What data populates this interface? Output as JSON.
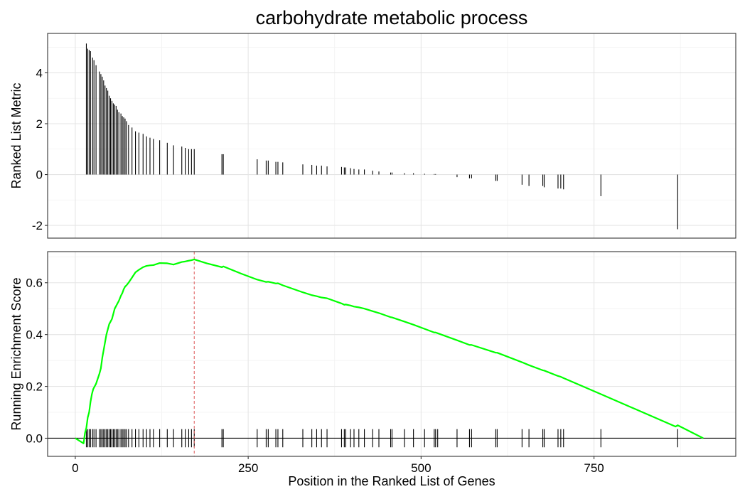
{
  "chart_data": [
    {
      "type": "bar",
      "panel": "top",
      "title": "carbohydrate metabolic process",
      "ylabel": "Ranked List Metric",
      "xlim": [
        -40,
        955
      ],
      "ylim": [
        -2.5,
        5.55
      ],
      "yticks": [
        -2,
        0,
        2,
        4
      ],
      "ytick_labels": [
        "-2",
        "0",
        "2",
        "4"
      ],
      "grid": true,
      "x": [
        16,
        18,
        20,
        22,
        25,
        27,
        30,
        35,
        37,
        39,
        41,
        43,
        45,
        47,
        49,
        51,
        53,
        55,
        57,
        59,
        61,
        63,
        66,
        68,
        70,
        72,
        74,
        77,
        82,
        87,
        92,
        98,
        103,
        108,
        113,
        122,
        133,
        142,
        154,
        159,
        164,
        168,
        172,
        212,
        214,
        263,
        276,
        279,
        290,
        293,
        300,
        329,
        342,
        349,
        356,
        364,
        385,
        389,
        391,
        398,
        403,
        410,
        418,
        430,
        439,
        456,
        458,
        476,
        489,
        505,
        519,
        521,
        524,
        552,
        570,
        573,
        608,
        610,
        646,
        656,
        676,
        678,
        698,
        702,
        706,
        760,
        871
      ],
      "values": [
        5.15,
        4.95,
        4.9,
        4.85,
        4.6,
        4.5,
        4.3,
        4.05,
        3.95,
        3.85,
        3.7,
        3.5,
        3.4,
        3.3,
        3.1,
        3.0,
        2.9,
        2.8,
        2.75,
        2.7,
        2.55,
        2.45,
        2.4,
        2.3,
        2.25,
        2.2,
        2.1,
        1.95,
        1.85,
        1.7,
        1.65,
        1.6,
        1.5,
        1.45,
        1.4,
        1.35,
        1.25,
        1.15,
        1.1,
        1.05,
        1.0,
        1.0,
        1.0,
        0.8,
        0.8,
        0.6,
        0.55,
        0.55,
        0.5,
        0.5,
        0.48,
        0.4,
        0.38,
        0.35,
        0.35,
        0.32,
        0.3,
        0.28,
        0.28,
        0.25,
        0.22,
        0.2,
        0.2,
        0.15,
        0.12,
        0.08,
        0.08,
        0.05,
        0.05,
        0.03,
        0.02,
        0.02,
        0.0,
        -0.1,
        -0.15,
        -0.15,
        -0.25,
        -0.25,
        -0.4,
        -0.45,
        -0.45,
        -0.5,
        -0.55,
        -0.55,
        -0.58,
        -0.85,
        -2.15
      ]
    },
    {
      "type": "line",
      "panel": "bottom",
      "ylabel": "Running Enrichment Score",
      "xlabel": "Position in the Ranked List of Genes",
      "xlim": [
        -40,
        955
      ],
      "ylim": [
        -0.07,
        0.72
      ],
      "xticks": [
        0,
        250,
        500,
        750
      ],
      "xtick_labels": [
        "0",
        "250",
        "500",
        "750"
      ],
      "yticks": [
        0.0,
        0.2,
        0.4,
        0.6
      ],
      "ytick_labels": [
        "0.0",
        "0.2",
        "0.4",
        "0.6"
      ],
      "grid": true,
      "line_color": "#00ff00",
      "peak_marker": {
        "x": 172,
        "color": "#e06666",
        "style": "dashed"
      },
      "series": [
        {
          "x": [
            0,
            12,
            14,
            16,
            18,
            20,
            22,
            24,
            26,
            28,
            30,
            35,
            37,
            39,
            41,
            43,
            45,
            47,
            49,
            51,
            53,
            55,
            57,
            59,
            61,
            63,
            66,
            68,
            70,
            72,
            74,
            77,
            82,
            87,
            92,
            98,
            103,
            108,
            113,
            122,
            133,
            142,
            154,
            159,
            164,
            168,
            172,
            190,
            212,
            214,
            240,
            263,
            276,
            279,
            290,
            293,
            300,
            329,
            342,
            349,
            356,
            364,
            385,
            389,
            391,
            398,
            403,
            410,
            418,
            430,
            439,
            456,
            458,
            476,
            489,
            505,
            519,
            521,
            524,
            552,
            570,
            573,
            608,
            610,
            646,
            656,
            676,
            678,
            698,
            702,
            706,
            760,
            868,
            871,
            908
          ],
          "values": [
            0.0,
            -0.02,
            0.02,
            0.04,
            0.08,
            0.1,
            0.14,
            0.17,
            0.19,
            0.2,
            0.21,
            0.25,
            0.27,
            0.31,
            0.34,
            0.37,
            0.4,
            0.42,
            0.44,
            0.45,
            0.46,
            0.48,
            0.5,
            0.51,
            0.52,
            0.53,
            0.55,
            0.56,
            0.575,
            0.585,
            0.59,
            0.6,
            0.62,
            0.64,
            0.65,
            0.66,
            0.665,
            0.667,
            0.668,
            0.676,
            0.675,
            0.67,
            0.68,
            0.682,
            0.685,
            0.687,
            0.69,
            0.675,
            0.66,
            0.663,
            0.635,
            0.612,
            0.603,
            0.604,
            0.597,
            0.598,
            0.59,
            0.563,
            0.552,
            0.548,
            0.543,
            0.54,
            0.52,
            0.515,
            0.516,
            0.512,
            0.508,
            0.505,
            0.5,
            0.49,
            0.483,
            0.467,
            0.466,
            0.45,
            0.438,
            0.422,
            0.408,
            0.408,
            0.405,
            0.378,
            0.36,
            0.36,
            0.33,
            0.33,
            0.293,
            0.282,
            0.262,
            0.261,
            0.24,
            0.237,
            0.232,
            0.17,
            0.045,
            0.05,
            0.0
          ]
        }
      ],
      "hit_positions": [
        16,
        18,
        20,
        22,
        25,
        27,
        30,
        35,
        37,
        39,
        41,
        43,
        45,
        47,
        49,
        51,
        53,
        55,
        57,
        59,
        61,
        63,
        66,
        68,
        70,
        72,
        74,
        77,
        82,
        87,
        92,
        98,
        103,
        108,
        113,
        122,
        133,
        142,
        154,
        159,
        164,
        168,
        172,
        212,
        214,
        263,
        276,
        279,
        290,
        293,
        300,
        329,
        342,
        349,
        356,
        364,
        385,
        389,
        391,
        398,
        403,
        410,
        418,
        430,
        439,
        456,
        458,
        476,
        489,
        505,
        519,
        521,
        524,
        552,
        570,
        573,
        608,
        610,
        646,
        656,
        676,
        678,
        698,
        702,
        706,
        760,
        871
      ]
    }
  ]
}
